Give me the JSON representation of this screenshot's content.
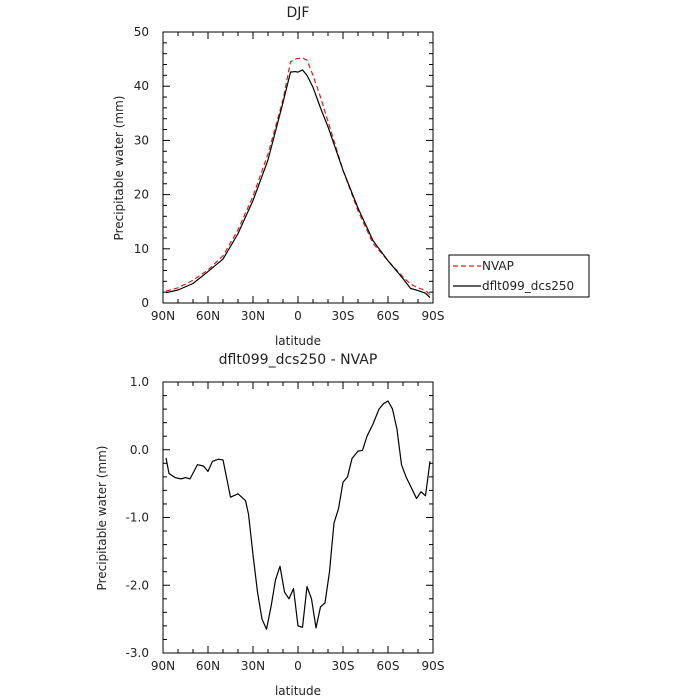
{
  "chart_data": [
    {
      "type": "line",
      "title": "DJF",
      "xlabel": "latitude",
      "ylabel": "Precipitable water (mm)",
      "xlim": [
        90,
        -90
      ],
      "ylim": [
        0,
        50
      ],
      "x_ticks": [
        {
          "value": 90,
          "label": "90N"
        },
        {
          "value": 60,
          "label": "60N"
        },
        {
          "value": 30,
          "label": "30N"
        },
        {
          "value": 0,
          "label": "0"
        },
        {
          "value": -30,
          "label": "30S"
        },
        {
          "value": -60,
          "label": "60S"
        },
        {
          "value": -90,
          "label": "90S"
        }
      ],
      "y_ticks": [
        {
          "value": 0,
          "label": "0"
        },
        {
          "value": 10,
          "label": "10"
        },
        {
          "value": 20,
          "label": "20"
        },
        {
          "value": 30,
          "label": "30"
        },
        {
          "value": 40,
          "label": "40"
        },
        {
          "value": 50,
          "label": "50"
        }
      ],
      "legend_position": "right",
      "series": [
        {
          "name": "NVAP",
          "color": "#e41a1c",
          "dash": "dashed",
          "x": [
            88,
            80,
            70,
            60,
            50,
            40,
            30,
            20,
            10,
            5,
            2,
            0,
            -3,
            -6,
            -10,
            -15,
            -20,
            -30,
            -40,
            -50,
            -60,
            -70,
            -75,
            -80,
            -85,
            -88
          ],
          "y": [
            2.2,
            2.8,
            4.2,
            6.1,
            8.7,
            13.5,
            19.7,
            27.5,
            37.5,
            44.5,
            45.0,
            45.1,
            45.2,
            44.8,
            42.0,
            38.0,
            33.5,
            24.5,
            17.0,
            11.0,
            7.8,
            4.8,
            3.5,
            2.8,
            2.3,
            1.5
          ]
        },
        {
          "name": "dflt099_dcs250",
          "color": "#000000",
          "dash": "solid",
          "x": [
            88,
            80,
            70,
            60,
            50,
            40,
            30,
            20,
            10,
            5,
            2,
            0,
            -3,
            -6,
            -10,
            -15,
            -20,
            -30,
            -40,
            -50,
            -60,
            -70,
            -75,
            -80,
            -85,
            -88
          ],
          "y": [
            1.9,
            2.4,
            3.6,
            5.8,
            8.1,
            12.8,
            18.9,
            26.4,
            37.0,
            42.6,
            42.7,
            42.6,
            43.0,
            42.0,
            39.8,
            36.0,
            32.5,
            24.5,
            17.5,
            11.5,
            7.8,
            4.5,
            2.7,
            2.3,
            1.8,
            1.0
          ]
        }
      ]
    },
    {
      "type": "line",
      "title": "dflt099_dcs250 - NVAP",
      "xlabel": "latitude",
      "ylabel": "Precipitable water (mm)",
      "xlim": [
        90,
        -90
      ],
      "ylim": [
        -3.0,
        1.0
      ],
      "x_ticks": [
        {
          "value": 90,
          "label": "90N"
        },
        {
          "value": 60,
          "label": "60N"
        },
        {
          "value": 30,
          "label": "30N"
        },
        {
          "value": 0,
          "label": "0"
        },
        {
          "value": -30,
          "label": "30S"
        },
        {
          "value": -60,
          "label": "60S"
        },
        {
          "value": -90,
          "label": "90S"
        }
      ],
      "y_ticks": [
        {
          "value": 1.0,
          "label": "1.0"
        },
        {
          "value": 0.0,
          "label": "0.0"
        },
        {
          "value": -1.0,
          "label": "-1.0"
        },
        {
          "value": -2.0,
          "label": "-2.0"
        },
        {
          "value": -3.0,
          "label": "-3.0"
        }
      ],
      "series": [
        {
          "color": "#000000",
          "dash": "solid",
          "x": [
            88,
            86,
            82,
            78,
            75,
            72,
            67,
            63,
            60,
            57,
            53,
            50,
            45,
            40,
            35,
            33,
            30,
            27,
            24,
            21,
            18,
            15,
            12,
            9,
            6,
            3,
            0,
            -3,
            -6,
            -9,
            -12,
            -15,
            -18,
            -21,
            -24,
            -27,
            -30,
            -33,
            -36,
            -40,
            -43,
            -46,
            -50,
            -54,
            -57,
            -60,
            -63,
            -66,
            -69,
            -72,
            -76,
            -79,
            -82,
            -85,
            -88
          ],
          "y": [
            -0.12,
            -0.35,
            -0.41,
            -0.43,
            -0.41,
            -0.43,
            -0.22,
            -0.24,
            -0.32,
            -0.17,
            -0.14,
            -0.15,
            -0.7,
            -0.65,
            -0.75,
            -0.95,
            -1.55,
            -2.1,
            -2.5,
            -2.65,
            -2.32,
            -1.92,
            -1.72,
            -2.1,
            -2.2,
            -2.05,
            -2.6,
            -2.62,
            -2.02,
            -2.2,
            -2.63,
            -2.32,
            -2.26,
            -1.8,
            -1.08,
            -0.87,
            -0.48,
            -0.4,
            -0.13,
            -0.02,
            -0.01,
            0.2,
            0.38,
            0.6,
            0.68,
            0.72,
            0.6,
            0.3,
            -0.22,
            -0.4,
            -0.58,
            -0.72,
            -0.62,
            -0.68,
            -0.17
          ]
        }
      ]
    }
  ]
}
